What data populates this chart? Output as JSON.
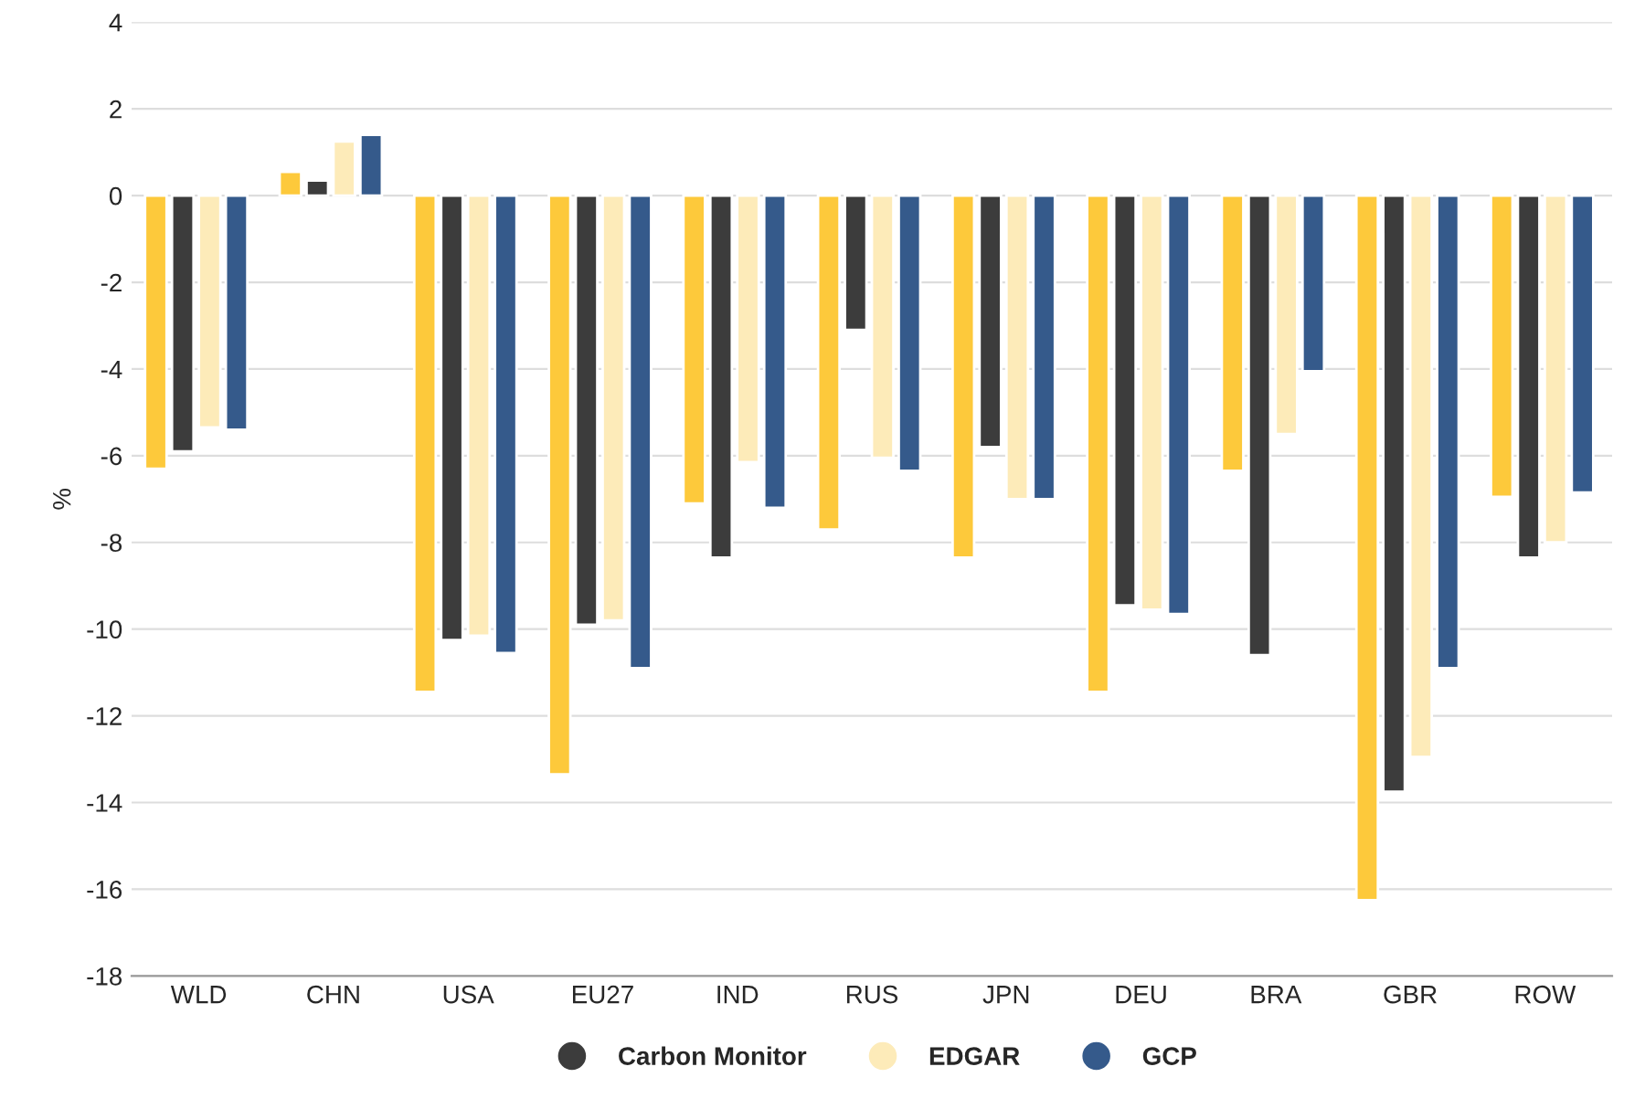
{
  "chart_data": {
    "type": "bar",
    "ylabel": "%",
    "categories": [
      "WLD",
      "CHN",
      "USA",
      "EU27",
      "IND",
      "RUS",
      "JPN",
      "DEU",
      "BRA",
      "GBR",
      "ROW"
    ],
    "series": [
      {
        "color": "#fdc93b",
        "values": [
          -6.3,
          0.55,
          -11.45,
          -13.35,
          -7.1,
          -7.7,
          -8.35,
          -11.45,
          -6.35,
          -16.25,
          -6.95
        ]
      },
      {
        "name": "Carbon Monitor",
        "color": "#3c3c3c",
        "values": [
          -5.9,
          0.35,
          -10.25,
          -9.9,
          -8.35,
          -3.1,
          -5.8,
          -9.45,
          -10.6,
          -13.75,
          -8.35
        ]
      },
      {
        "name": "EDGAR",
        "color": "#fdebb9",
        "values": [
          -5.35,
          1.25,
          -10.15,
          -9.8,
          -6.15,
          -6.05,
          -7.0,
          -9.55,
          -5.5,
          -12.95,
          -8.0
        ]
      },
      {
        "name": "GCP",
        "color": "#355a8b",
        "values": [
          -5.4,
          1.4,
          -10.55,
          -10.9,
          -7.2,
          -6.35,
          -7.0,
          -9.65,
          -4.05,
          -10.9,
          -6.85
        ]
      }
    ],
    "ylim": [
      -18,
      4
    ],
    "yticks": [
      -18,
      -16,
      -14,
      -12,
      -10,
      -8,
      -6,
      -4,
      -2,
      0,
      2,
      4
    ],
    "grid": "y",
    "legend": "bottom"
  }
}
